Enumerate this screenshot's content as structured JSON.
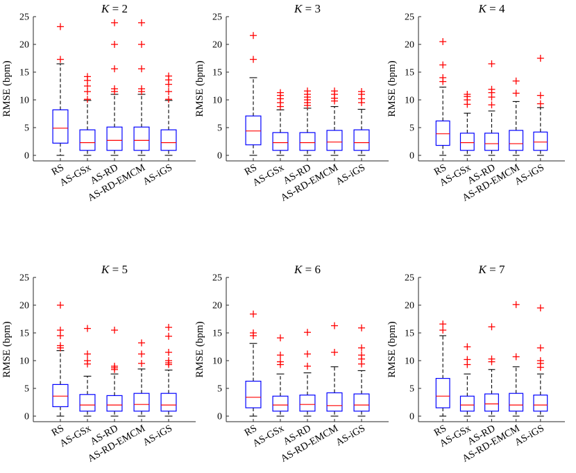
{
  "chart_data": [
    {
      "type": "boxplot",
      "title_var": "K",
      "title_value": "2",
      "ylabel": "RMSE (bpm)",
      "ylim": [
        -1,
        25
      ],
      "yticks": [
        0,
        5,
        10,
        15,
        20,
        25
      ],
      "categories": [
        "RS",
        "AS-GSx",
        "AS-RD",
        "AS-RD-EMCM",
        "AS-iGS"
      ],
      "boxes": [
        {
          "whisker_low": 0,
          "q1": 2.2,
          "median": 4.9,
          "q3": 8.2,
          "whisker_high": 16.5,
          "outliers": [
            17.3,
            23.2
          ]
        },
        {
          "whisker_low": 0,
          "q1": 0.9,
          "median": 2.3,
          "q3": 4.6,
          "whisker_high": 9.9,
          "outliers": [
            10.1,
            11.5,
            12.5,
            13.5,
            14.2
          ]
        },
        {
          "whisker_low": 0,
          "q1": 0.9,
          "median": 2.7,
          "q3": 5.1,
          "whisker_high": 11.0,
          "outliers": [
            11.5,
            12.0,
            15.6,
            20.0,
            23.9
          ]
        },
        {
          "whisker_low": 0,
          "q1": 0.9,
          "median": 2.7,
          "q3": 5.1,
          "whisker_high": 11.0,
          "outliers": [
            11.5,
            12.0,
            15.6,
            20.0,
            23.9
          ]
        },
        {
          "whisker_low": 0,
          "q1": 0.9,
          "median": 2.3,
          "q3": 4.6,
          "whisker_high": 9.9,
          "outliers": [
            10.1,
            11.5,
            12.8,
            13.6,
            14.3
          ]
        }
      ]
    },
    {
      "type": "boxplot",
      "title_var": "K",
      "title_value": "3",
      "ylabel": "RMSE (bpm)",
      "ylim": [
        -1,
        25
      ],
      "yticks": [
        0,
        5,
        10,
        15,
        20,
        25
      ],
      "categories": [
        "RS",
        "AS-GSx",
        "AS-RD",
        "AS-RD-EMCM",
        "AS-iGS"
      ],
      "boxes": [
        {
          "whisker_low": 0,
          "q1": 1.9,
          "median": 4.4,
          "q3": 7.1,
          "whisker_high": 14.0,
          "outliers": [
            17.3,
            21.6
          ]
        },
        {
          "whisker_low": 0,
          "q1": 0.9,
          "median": 2.3,
          "q3": 4.1,
          "whisker_high": 8.2,
          "outliers": [
            8.8,
            9.5,
            10.2,
            10.8,
            11.3
          ]
        },
        {
          "whisker_low": 0,
          "q1": 0.9,
          "median": 2.3,
          "q3": 4.1,
          "whisker_high": 8.5,
          "outliers": [
            9.0,
            9.5,
            10.0,
            10.5,
            11.0,
            11.6
          ]
        },
        {
          "whisker_low": 0,
          "q1": 0.9,
          "median": 2.4,
          "q3": 4.5,
          "whisker_high": 8.8,
          "outliers": [
            9.8,
            10.3,
            11.0,
            11.6
          ]
        },
        {
          "whisker_low": 0,
          "q1": 0.9,
          "median": 2.3,
          "q3": 4.6,
          "whisker_high": 8.3,
          "outliers": [
            9.5,
            10.2,
            11.0,
            11.5
          ]
        }
      ]
    },
    {
      "type": "boxplot",
      "title_var": "K",
      "title_value": "4",
      "ylabel": "RMSE (bpm)",
      "ylim": [
        -1,
        25
      ],
      "yticks": [
        0,
        5,
        10,
        15,
        20,
        25
      ],
      "categories": [
        "RS",
        "AS-GSx",
        "AS-RD",
        "AS-RD-EMCM",
        "AS-iGS"
      ],
      "boxes": [
        {
          "whisker_low": 0,
          "q1": 1.8,
          "median": 3.9,
          "q3": 6.2,
          "whisker_high": 12.3,
          "outliers": [
            13.3,
            14.0,
            16.3,
            20.5
          ]
        },
        {
          "whisker_low": 0,
          "q1": 0.9,
          "median": 2.3,
          "q3": 4.0,
          "whisker_high": 7.6,
          "outliers": [
            9.2,
            10.0,
            10.6,
            11.0
          ]
        },
        {
          "whisker_low": 0,
          "q1": 0.9,
          "median": 2.1,
          "q3": 4.0,
          "whisker_high": 8.0,
          "outliers": [
            9.1,
            10.5,
            11.3,
            11.9,
            16.5
          ]
        },
        {
          "whisker_low": 0,
          "q1": 0.9,
          "median": 2.1,
          "q3": 4.5,
          "whisker_high": 9.7,
          "outliers": [
            11.2,
            13.4
          ]
        },
        {
          "whisker_low": 0,
          "q1": 0.9,
          "median": 2.4,
          "q3": 4.2,
          "whisker_high": 8.6,
          "outliers": [
            9.3,
            10.8,
            17.5
          ]
        }
      ]
    },
    {
      "type": "boxplot",
      "title_var": "K",
      "title_value": "5",
      "ylabel": "RMSE (bpm)",
      "ylim": [
        -1,
        25
      ],
      "yticks": [
        0,
        5,
        10,
        15,
        20,
        25
      ],
      "categories": [
        "RS",
        "AS-GSx",
        "AS-RD",
        "AS-RD-EMCM",
        "AS-iGS"
      ],
      "boxes": [
        {
          "whisker_low": 0,
          "q1": 1.7,
          "median": 3.6,
          "q3": 5.7,
          "whisker_high": 11.8,
          "outliers": [
            12.3,
            12.7,
            14.5,
            15.5,
            20.0
          ]
        },
        {
          "whisker_low": 0,
          "q1": 0.9,
          "median": 2.0,
          "q3": 3.9,
          "whisker_high": 7.2,
          "outliers": [
            9.4,
            10.0,
            11.2,
            15.8
          ]
        },
        {
          "whisker_low": 0,
          "q1": 0.9,
          "median": 2.0,
          "q3": 3.7,
          "whisker_high": 7.6,
          "outliers": [
            8.4,
            8.7,
            9.0,
            15.5
          ]
        },
        {
          "whisker_low": 0,
          "q1": 0.9,
          "median": 2.1,
          "q3": 4.1,
          "whisker_high": 8.5,
          "outliers": [
            9.5,
            11.2,
            13.2
          ]
        },
        {
          "whisker_low": 0,
          "q1": 0.9,
          "median": 2.0,
          "q3": 4.1,
          "whisker_high": 8.3,
          "outliers": [
            9.3,
            9.6,
            10.0,
            11.5,
            14.4,
            16.0
          ]
        }
      ]
    },
    {
      "type": "boxplot",
      "title_var": "K",
      "title_value": "6",
      "ylabel": "RMSE (bpm)",
      "ylim": [
        -1,
        25
      ],
      "yticks": [
        0,
        5,
        10,
        15,
        20,
        25
      ],
      "categories": [
        "RS",
        "AS-GSx",
        "AS-RD",
        "AS-RD-EMCM",
        "AS-iGS"
      ],
      "boxes": [
        {
          "whisker_low": 0,
          "q1": 1.5,
          "median": 3.4,
          "q3": 6.3,
          "whisker_high": 13.1,
          "outliers": [
            14.5,
            15.0,
            18.4
          ]
        },
        {
          "whisker_low": 0,
          "q1": 0.9,
          "median": 2.0,
          "q3": 3.6,
          "whisker_high": 7.6,
          "outliers": [
            9.3,
            9.8,
            11.0,
            14.1
          ]
        },
        {
          "whisker_low": 0,
          "q1": 0.9,
          "median": 2.1,
          "q3": 3.8,
          "whisker_high": 7.8,
          "outliers": [
            9.0,
            11.2,
            15.1
          ]
        },
        {
          "whisker_low": 0,
          "q1": 0.9,
          "median": 1.9,
          "q3": 4.2,
          "whisker_high": 8.9,
          "outliers": [
            11.5,
            16.3
          ]
        },
        {
          "whisker_low": 0,
          "q1": 0.9,
          "median": 2.0,
          "q3": 4.0,
          "whisker_high": 8.2,
          "outliers": [
            9.4,
            10.3,
            11.0,
            12.3,
            15.9
          ]
        }
      ]
    },
    {
      "type": "boxplot",
      "title_var": "K",
      "title_value": "7",
      "ylabel": "RMSE (bpm)",
      "ylim": [
        -1,
        25
      ],
      "yticks": [
        0,
        5,
        10,
        15,
        20,
        25
      ],
      "categories": [
        "RS",
        "AS-GSx",
        "AS-RD",
        "AS-RD-EMCM",
        "AS-iGS"
      ],
      "boxes": [
        {
          "whisker_low": 0,
          "q1": 1.5,
          "median": 3.6,
          "q3": 6.8,
          "whisker_high": 14.5,
          "outliers": [
            15.5,
            16.6
          ]
        },
        {
          "whisker_low": 0,
          "q1": 0.9,
          "median": 2.0,
          "q3": 3.6,
          "whisker_high": 7.6,
          "outliers": [
            9.3,
            10.2,
            12.5
          ]
        },
        {
          "whisker_low": 0,
          "q1": 0.9,
          "median": 2.2,
          "q3": 4.0,
          "whisker_high": 8.4,
          "outliers": [
            9.8,
            10.3,
            16.1
          ]
        },
        {
          "whisker_low": 0,
          "q1": 0.9,
          "median": 2.0,
          "q3": 4.1,
          "whisker_high": 8.9,
          "outliers": [
            10.7,
            20.1
          ]
        },
        {
          "whisker_low": 0,
          "q1": 0.9,
          "median": 2.0,
          "q3": 3.8,
          "whisker_high": 7.6,
          "outliers": [
            8.8,
            9.5,
            10.0,
            12.3,
            19.5
          ]
        }
      ]
    }
  ]
}
